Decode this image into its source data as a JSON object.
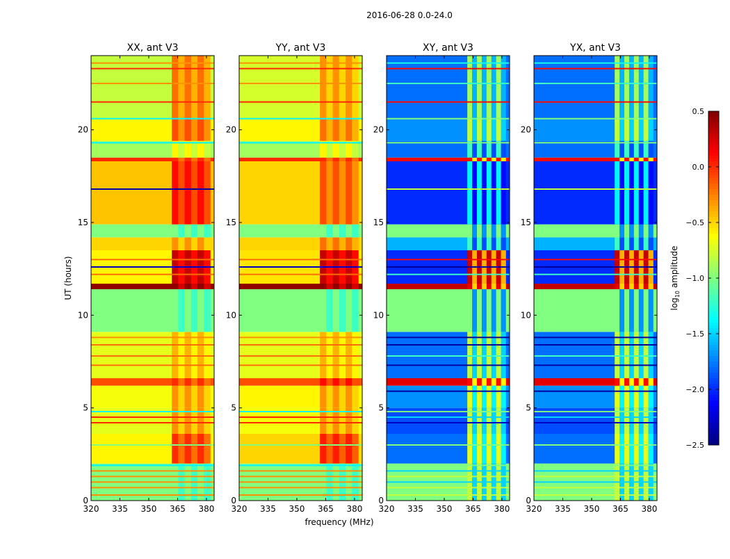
{
  "chart_data": {
    "type": "heatmap",
    "title": "2016-06-28 0.0-24.0",
    "xlabel": "frequency (MHz)",
    "ylabel": "UT (hours)",
    "xlim": [
      320,
      384
    ],
    "ylim": [
      0,
      24
    ],
    "xticks": [
      "320",
      "335",
      "350",
      "365",
      "380"
    ],
    "xtick_values": [
      320,
      335,
      350,
      365,
      380
    ],
    "yticks": [
      "0",
      "5",
      "10",
      "15",
      "20"
    ],
    "ytick_values": [
      0,
      5,
      10,
      15,
      20
    ],
    "high_band_mhz": [
      362,
      382
    ],
    "colorbar": {
      "label": "log10 amplitude",
      "label_main": "log",
      "label_sub": "10",
      "label_rest": " amplitude",
      "range": [
        -2.5,
        0.5
      ],
      "colormap": "jet",
      "ticks": [
        "0.5",
        "0.0",
        "−0.5",
        "−1.0",
        "−1.5",
        "−2.0",
        "−2.5"
      ],
      "tick_values": [
        0.5,
        0.0,
        -0.5,
        -1.0,
        -1.5,
        -2.0,
        -2.5
      ]
    },
    "panels": [
      {
        "title": "XX, ant V3",
        "striped_high": false,
        "segments": [
          [
            0,
            2,
            -1.0,
            -1.0
          ],
          [
            2,
            3.6,
            -0.6,
            0.0
          ],
          [
            3.6,
            5,
            -0.7,
            -0.3
          ],
          [
            5,
            6.2,
            -0.65,
            -0.3
          ],
          [
            6.2,
            6.6,
            -0.1,
            0.0
          ],
          [
            6.6,
            9.1,
            -0.7,
            -0.4
          ],
          [
            9.1,
            11.4,
            -1.0,
            -1.0
          ],
          [
            11.4,
            11.7,
            0.45,
            0.45
          ],
          [
            11.7,
            13.5,
            -0.6,
            0.3
          ],
          [
            13.5,
            14.2,
            -0.5,
            -0.3
          ],
          [
            14.2,
            14.9,
            -1.0,
            -1.0
          ],
          [
            14.9,
            18.3,
            -0.45,
            0.1
          ],
          [
            18.3,
            18.5,
            0.0,
            0.0
          ],
          [
            18.5,
            19.4,
            -0.9,
            -0.6
          ],
          [
            19.4,
            20.6,
            -0.6,
            -0.1
          ],
          [
            20.6,
            24,
            -0.8,
            -0.2
          ]
        ],
        "stripes": [
          [
            0.3,
            -0.3
          ],
          [
            0.7,
            -0.3
          ],
          [
            1.0,
            -0.3
          ],
          [
            1.3,
            -0.3
          ],
          [
            1.6,
            -0.3
          ],
          [
            1.9,
            -1.4
          ],
          [
            3.0,
            -1.0
          ],
          [
            4.2,
            0.0
          ],
          [
            4.5,
            0.0
          ],
          [
            4.8,
            -1.4
          ],
          [
            7.3,
            -0.2
          ],
          [
            7.8,
            -0.2
          ],
          [
            8.4,
            -0.2
          ],
          [
            8.8,
            -0.3
          ],
          [
            12.2,
            -0.2
          ],
          [
            12.6,
            -2.3
          ],
          [
            13.0,
            -0.2
          ],
          [
            16.8,
            -2.4
          ],
          [
            19.3,
            -1.4
          ],
          [
            20.6,
            -1.4
          ],
          [
            21.5,
            0.0
          ],
          [
            22.5,
            -0.3
          ],
          [
            23.3,
            0.0
          ],
          [
            23.6,
            -0.3
          ]
        ]
      },
      {
        "title": "YY, ant V3",
        "striped_high": false,
        "segments": [
          [
            0,
            2,
            -1.0,
            -1.0
          ],
          [
            2,
            3.6,
            -0.5,
            0.05
          ],
          [
            3.6,
            5,
            -0.65,
            -0.3
          ],
          [
            5,
            6.2,
            -0.6,
            -0.3
          ],
          [
            6.2,
            6.6,
            -0.1,
            0.1
          ],
          [
            6.6,
            9.1,
            -0.7,
            -0.4
          ],
          [
            9.1,
            11.4,
            -1.0,
            -1.0
          ],
          [
            11.4,
            11.7,
            0.45,
            0.45
          ],
          [
            11.7,
            13.5,
            -0.55,
            0.3
          ],
          [
            13.5,
            14.2,
            -0.5,
            -0.2
          ],
          [
            14.2,
            14.9,
            -1.0,
            -1.0
          ],
          [
            14.9,
            18.3,
            -0.5,
            -0.1
          ],
          [
            18.3,
            18.5,
            0.0,
            0.0
          ],
          [
            18.5,
            19.4,
            -0.9,
            -0.6
          ],
          [
            19.4,
            20.6,
            -0.6,
            -0.2
          ],
          [
            20.6,
            24,
            -0.75,
            -0.3
          ]
        ],
        "stripes": [
          [
            0.3,
            -0.3
          ],
          [
            0.7,
            -0.3
          ],
          [
            1.0,
            -0.3
          ],
          [
            1.3,
            -0.3
          ],
          [
            1.6,
            -0.3
          ],
          [
            1.9,
            -1.4
          ],
          [
            3.0,
            -1.0
          ],
          [
            4.2,
            0.0
          ],
          [
            4.5,
            0.0
          ],
          [
            4.8,
            -1.4
          ],
          [
            7.3,
            -0.2
          ],
          [
            7.8,
            -0.2
          ],
          [
            8.4,
            -0.2
          ],
          [
            8.8,
            -0.3
          ],
          [
            12.2,
            -0.2
          ],
          [
            12.6,
            -2.3
          ],
          [
            13.0,
            -0.2
          ],
          [
            19.3,
            -1.4
          ],
          [
            20.6,
            -1.4
          ],
          [
            21.5,
            0.0
          ],
          [
            22.5,
            -0.3
          ],
          [
            23.3,
            0.0
          ],
          [
            23.6,
            -0.3
          ]
        ]
      },
      {
        "title": "XY, ant V3",
        "striped_high": true,
        "segments": [
          [
            0,
            2,
            -1.0,
            -0.8
          ],
          [
            2,
            3.6,
            -1.8,
            -0.7
          ],
          [
            3.6,
            5,
            -1.9,
            -0.8
          ],
          [
            5,
            6.2,
            -1.7,
            -0.7
          ],
          [
            6.2,
            6.6,
            0.2,
            0.1
          ],
          [
            6.6,
            9.1,
            -1.8,
            -0.8
          ],
          [
            9.1,
            11.4,
            -1.0,
            -1.0
          ],
          [
            11.4,
            11.7,
            0.3,
            0.2
          ],
          [
            11.7,
            13.5,
            -2.0,
            0.3
          ],
          [
            13.5,
            14.2,
            -1.6,
            -1.2
          ],
          [
            14.2,
            14.9,
            -1.0,
            -1.0
          ],
          [
            14.9,
            18.3,
            -2.0,
            -1.4
          ],
          [
            18.3,
            18.5,
            0.1,
            0.1
          ],
          [
            18.5,
            19.4,
            -1.8,
            -1.2
          ],
          [
            19.4,
            20.6,
            -1.7,
            -0.8
          ],
          [
            20.6,
            24,
            -1.8,
            -0.9
          ]
        ],
        "stripes": [
          [
            0.3,
            -0.8
          ],
          [
            0.7,
            -0.8
          ],
          [
            1.0,
            -1.5
          ],
          [
            1.3,
            -0.8
          ],
          [
            1.6,
            -1.5
          ],
          [
            1.9,
            -1.0
          ],
          [
            3.0,
            -1.0
          ],
          [
            4.2,
            -2.3
          ],
          [
            4.5,
            -1.5
          ],
          [
            4.8,
            -1.0
          ],
          [
            5.9,
            -2.4
          ],
          [
            7.3,
            -2.4
          ],
          [
            7.8,
            -1.2
          ],
          [
            8.4,
            -2.4
          ],
          [
            8.8,
            -2.4
          ],
          [
            12.2,
            -1.2
          ],
          [
            12.6,
            -2.4
          ],
          [
            13.0,
            0.1
          ],
          [
            16.8,
            -0.8
          ],
          [
            19.3,
            -1.0
          ],
          [
            20.6,
            -1.0
          ],
          [
            21.5,
            0.1
          ],
          [
            22.5,
            -1.2
          ],
          [
            23.3,
            0.1
          ],
          [
            23.6,
            -1.3
          ]
        ]
      },
      {
        "title": "YX, ant V3",
        "striped_high": true,
        "segments": [
          [
            0,
            2,
            -1.0,
            -0.8
          ],
          [
            2,
            3.6,
            -1.8,
            -0.7
          ],
          [
            3.6,
            5,
            -1.9,
            -0.8
          ],
          [
            5,
            6.2,
            -1.7,
            -0.7
          ],
          [
            6.2,
            6.6,
            0.2,
            0.1
          ],
          [
            6.6,
            9.1,
            -1.8,
            -0.8
          ],
          [
            9.1,
            11.4,
            -1.0,
            -1.0
          ],
          [
            11.4,
            11.7,
            0.3,
            0.2
          ],
          [
            11.7,
            13.5,
            -2.0,
            0.3
          ],
          [
            13.5,
            14.2,
            -1.6,
            -1.2
          ],
          [
            14.2,
            14.9,
            -1.0,
            -1.0
          ],
          [
            14.9,
            18.3,
            -2.0,
            -1.4
          ],
          [
            18.3,
            18.5,
            0.1,
            0.1
          ],
          [
            18.5,
            19.4,
            -1.8,
            -1.2
          ],
          [
            19.4,
            20.6,
            -1.7,
            -0.8
          ],
          [
            20.6,
            24,
            -1.8,
            -0.9
          ]
        ],
        "stripes": [
          [
            0.3,
            -0.8
          ],
          [
            0.7,
            -0.8
          ],
          [
            1.0,
            -1.5
          ],
          [
            1.3,
            -0.8
          ],
          [
            1.6,
            -1.5
          ],
          [
            1.9,
            -1.0
          ],
          [
            3.0,
            -1.0
          ],
          [
            4.2,
            -2.3
          ],
          [
            4.5,
            -1.5
          ],
          [
            4.8,
            -1.0
          ],
          [
            5.9,
            -2.4
          ],
          [
            7.3,
            -2.4
          ],
          [
            7.8,
            -1.2
          ],
          [
            8.4,
            -2.4
          ],
          [
            8.8,
            -2.4
          ],
          [
            12.2,
            -1.2
          ],
          [
            12.6,
            -2.4
          ],
          [
            13.0,
            0.1
          ],
          [
            16.8,
            -0.8
          ],
          [
            19.3,
            -1.0
          ],
          [
            20.6,
            -1.0
          ],
          [
            21.5,
            0.1
          ],
          [
            22.5,
            -1.2
          ],
          [
            23.3,
            0.1
          ],
          [
            23.6,
            -1.3
          ]
        ]
      }
    ]
  }
}
